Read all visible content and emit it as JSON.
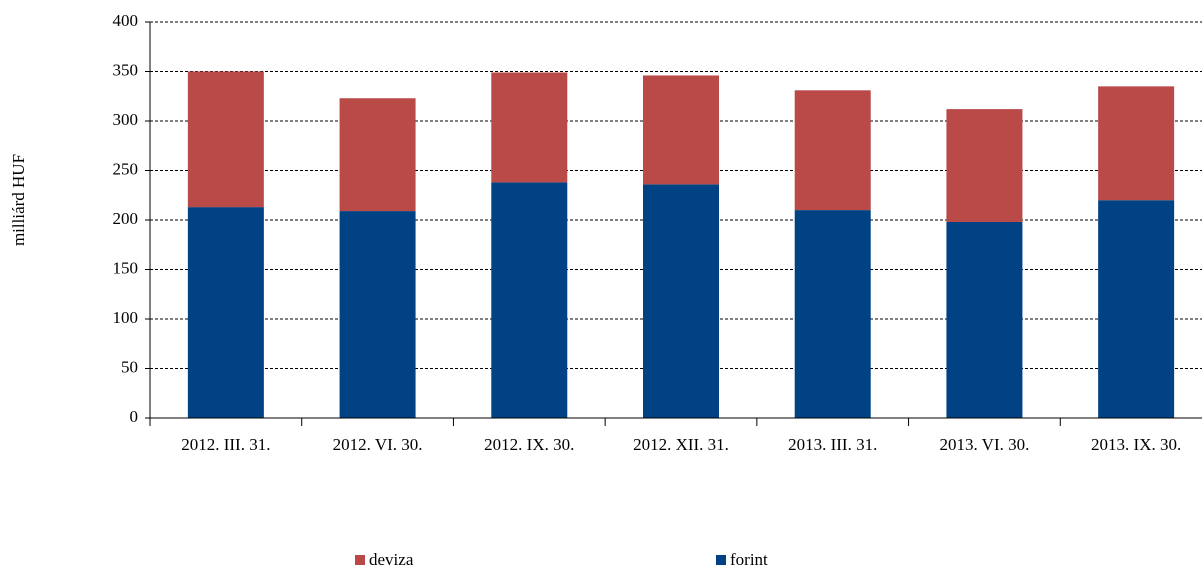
{
  "chart_data": {
    "type": "stacked_bar",
    "y_label": "milliárd HUF",
    "categories": [
      "2012. III. 31.",
      "2012. VI. 30.",
      "2012. IX. 30.",
      "2012. XII. 31.",
      "2013. III. 31.",
      "2013. VI. 30.",
      "2013. IX. 30."
    ],
    "series": [
      {
        "name": "deviza",
        "color": "#b94a48",
        "values": [
          137,
          114,
          111,
          110,
          121,
          114,
          115
        ]
      },
      {
        "name": "forint",
        "color": "#004283",
        "values": [
          213,
          209,
          238,
          236,
          210,
          198,
          220
        ]
      }
    ],
    "ylim": [
      0,
      400
    ],
    "yticks": [
      0,
      50,
      100,
      150,
      200,
      250,
      300,
      350,
      400
    ],
    "grid": true,
    "legend": "bottom"
  }
}
